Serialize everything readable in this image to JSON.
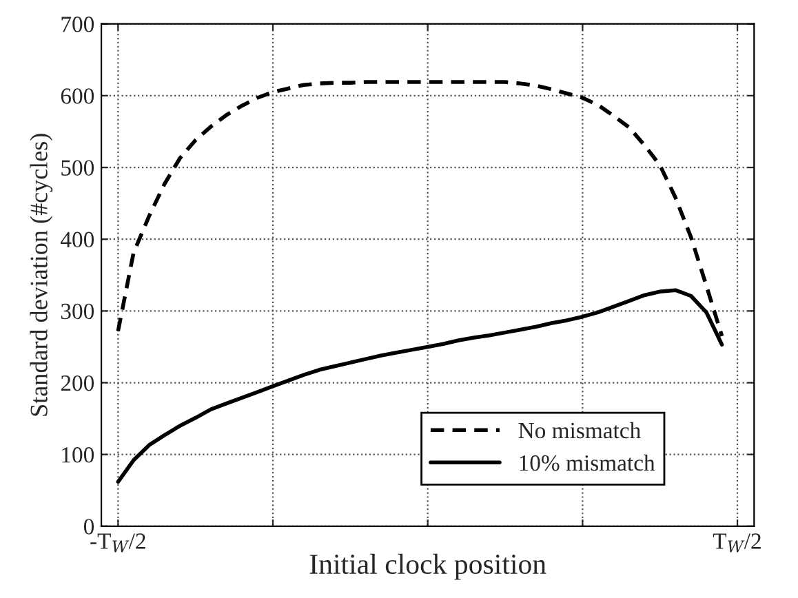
{
  "chart_data": {
    "type": "line",
    "xlabel": "Initial clock position",
    "ylabel": "Standard deviation (#cycles)",
    "categories": [
      "-T$_{W}$/2",
      null,
      null,
      null,
      null,
      null,
      null,
      null,
      null,
      null,
      null,
      null,
      null,
      null,
      null,
      null,
      null,
      null,
      null,
      null,
      null,
      null,
      null,
      null,
      null,
      null,
      null,
      null,
      null,
      null,
      null,
      null,
      null,
      null,
      null,
      null,
      null,
      null,
      null,
      null,
      "T$_{W}$/2"
    ],
    "ylim": [
      0,
      700
    ],
    "yticks": [
      0,
      100,
      200,
      300,
      400,
      500,
      600,
      700
    ],
    "grid": true,
    "legend": "bottom right",
    "series": [
      {
        "name": "No mismatch",
        "color": "#000000",
        "line_style": "dashed",
        "values": [
          272,
          381,
          432,
          477,
          513,
          538,
          557,
          573,
          586,
          597,
          605,
          610,
          615,
          617,
          618,
          618,
          619,
          619,
          619,
          619,
          619,
          619,
          619,
          619,
          619,
          619,
          617,
          614,
          609,
          603,
          597,
          587,
          572,
          556,
          531,
          503,
          458,
          403,
          335,
          265,
          null
        ]
      },
      {
        "name": "10% mismatch",
        "color": "#000000",
        "line_style": "solid",
        "values": [
          62,
          92,
          113,
          127,
          140,
          151,
          163,
          171,
          179,
          187,
          195,
          203,
          211,
          218,
          223,
          228,
          233,
          238,
          242,
          246,
          250,
          254,
          259,
          263,
          266,
          270,
          274,
          278,
          283,
          287,
          292,
          298,
          306,
          314,
          322,
          327,
          329,
          321,
          298,
          253,
          null
        ]
      }
    ]
  }
}
